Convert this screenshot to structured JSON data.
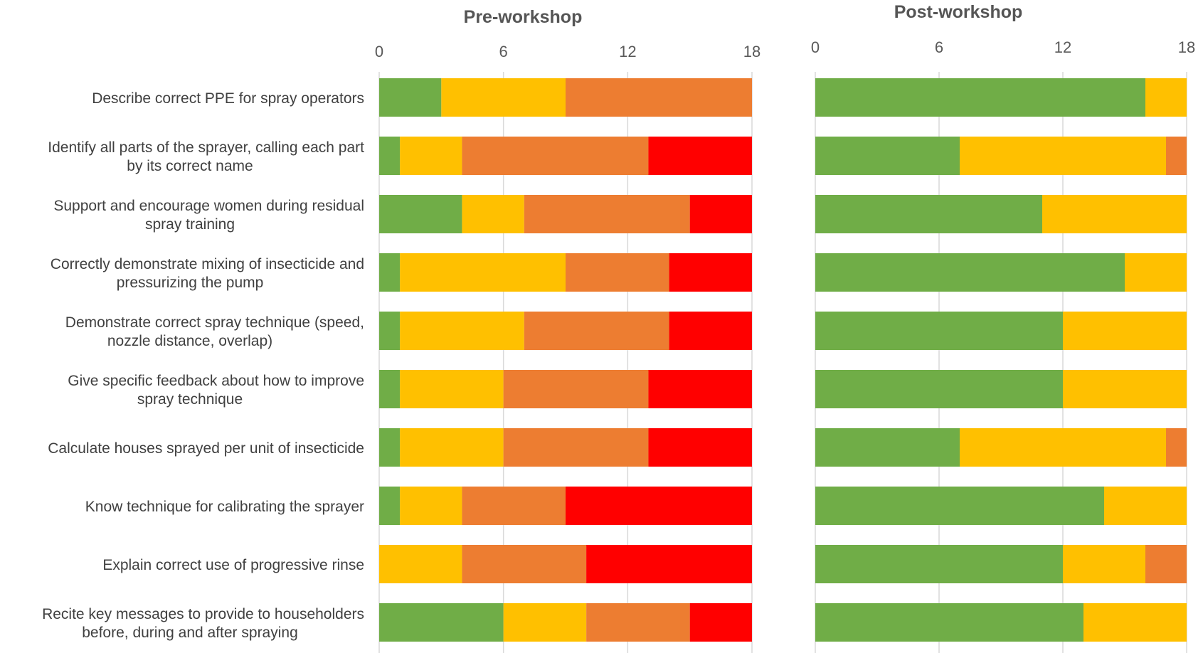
{
  "chart_data": [
    {
      "type": "bar",
      "orientation": "horizontal",
      "stacked": true,
      "title": "Pre-workshop",
      "xlim": [
        0,
        18
      ],
      "xticks": [
        0,
        6,
        12,
        18
      ],
      "grid": true,
      "categories": [
        "Describe correct PPE for spray operators",
        "Identify all parts of the sprayer, calling each part by its correct name",
        "Support and encourage women during residual spray training",
        "Correctly demonstrate mixing of insecticide and pressurizing the pump",
        "Demonstrate correct spray technique (speed, nozzle distance, overlap)",
        "Give specific feedback about how to improve spray technique",
        "Calculate houses sprayed per unit of insecticide",
        "Know technique for calibrating the sprayer",
        "Explain correct use of progressive rinse",
        "Recite key messages to provide to householders before, during and after spraying"
      ],
      "series": [
        {
          "color": "#70AD47",
          "values": [
            3,
            1,
            4,
            1,
            1,
            1,
            1,
            1,
            0,
            6
          ]
        },
        {
          "color": "#FFC000",
          "values": [
            6,
            3,
            3,
            8,
            6,
            5,
            5,
            3,
            4,
            4
          ]
        },
        {
          "color": "#ED7D31",
          "values": [
            9,
            9,
            8,
            5,
            7,
            7,
            7,
            5,
            6,
            5
          ]
        },
        {
          "color": "#FF0000",
          "values": [
            0,
            5,
            3,
            4,
            4,
            5,
            5,
            9,
            8,
            3
          ]
        }
      ]
    },
    {
      "type": "bar",
      "orientation": "horizontal",
      "stacked": true,
      "title": "Post-workshop",
      "xlim": [
        0,
        18
      ],
      "xticks": [
        0,
        6,
        12,
        18
      ],
      "grid": true,
      "categories": [
        "Describe correct PPE for spray operators",
        "Identify all parts of the sprayer, calling each part by its correct name",
        "Support and encourage women during residual spray training",
        "Correctly demonstrate mixing of insecticide and pressurizing the pump",
        "Demonstrate correct spray technique (speed, nozzle distance, overlap)",
        "Give specific feedback about how to improve spray technique",
        "Calculate houses sprayed per unit of insecticide",
        "Know technique for calibrating the sprayer",
        "Explain correct use of progressive rinse",
        "Recite key messages to provide to householders before, during and after spraying"
      ],
      "series": [
        {
          "color": "#70AD47",
          "values": [
            16,
            7,
            11,
            15,
            12,
            12,
            7,
            14,
            12,
            13
          ]
        },
        {
          "color": "#FFC000",
          "values": [
            2,
            10,
            7,
            3,
            6,
            6,
            10,
            4,
            4,
            5
          ]
        },
        {
          "color": "#ED7D31",
          "values": [
            0,
            1,
            0,
            0,
            0,
            0,
            1,
            0,
            2,
            0
          ]
        },
        {
          "color": "#FF0000",
          "values": [
            0,
            0,
            0,
            0,
            0,
            0,
            0,
            0,
            0,
            0
          ]
        }
      ]
    }
  ],
  "category_display_lines": [
    [
      "Describe correct PPE for spray operators"
    ],
    [
      "Identify all parts of the sprayer, calling each part",
      "by its correct name"
    ],
    [
      "Support and encourage women during residual",
      "spray training"
    ],
    [
      "Correctly demonstrate mixing of insecticide and",
      "pressurizing the pump"
    ],
    [
      "Demonstrate correct spray technique (speed,",
      "nozzle distance, overlap)"
    ],
    [
      "Give specific feedback about how to improve",
      "spray technique"
    ],
    [
      "Calculate houses sprayed per unit of insecticide"
    ],
    [
      "Know technique for calibrating the sprayer"
    ],
    [
      "Explain correct use of progressive rinse"
    ],
    [
      "Recite key messages to provide to householders",
      "before, during and after spraying"
    ]
  ]
}
